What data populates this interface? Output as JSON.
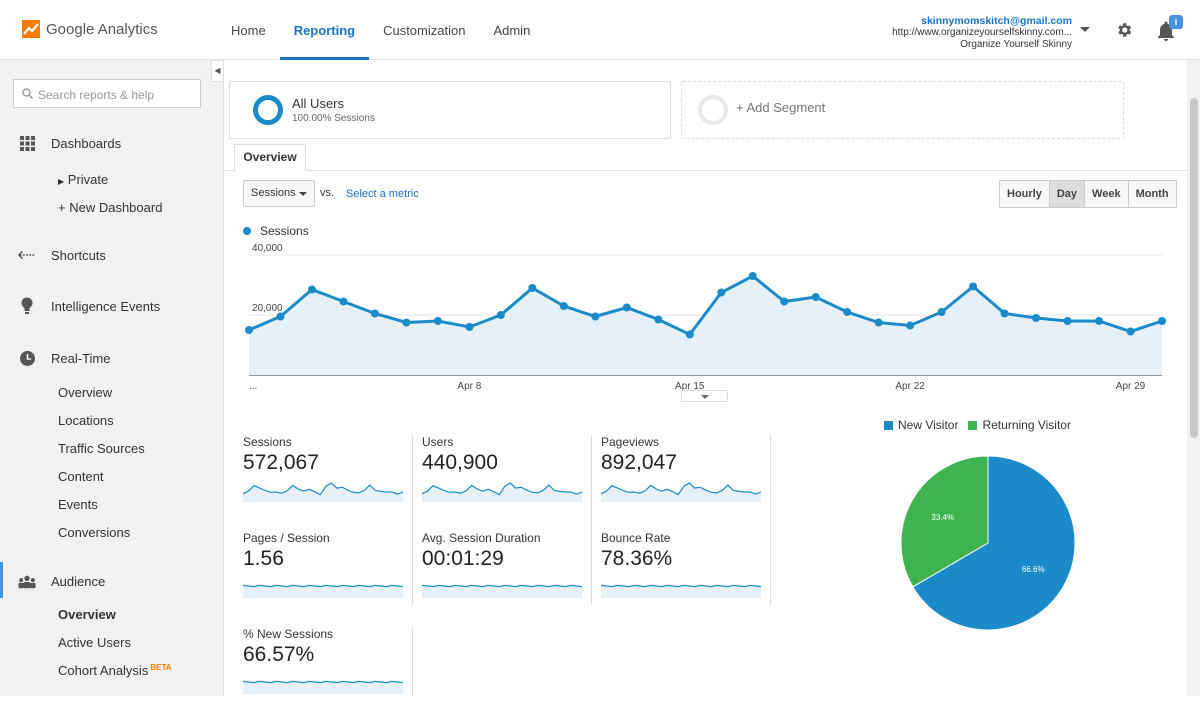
{
  "app": {
    "name": "Google Analytics"
  },
  "nav": {
    "items": [
      "Home",
      "Reporting",
      "Customization",
      "Admin"
    ],
    "active": "Reporting"
  },
  "account": {
    "email": "skinnymomskitch@gmail.com",
    "url": "http://www.organizeyourselfskinny.com...",
    "view": "Organize Yourself Skinny"
  },
  "notifications": {
    "badge": "i"
  },
  "sidebar": {
    "search_placeholder": "Search reports & help",
    "dashboards": "Dashboards",
    "private": "Private",
    "new_dashboard": "+ New Dashboard",
    "shortcuts": "Shortcuts",
    "intelligence": "Intelligence Events",
    "realtime": "Real-Time",
    "realtime_items": [
      "Overview",
      "Locations",
      "Traffic Sources",
      "Content",
      "Events",
      "Conversions"
    ],
    "audience": "Audience",
    "audience_items": [
      "Overview",
      "Active Users",
      "Cohort Analysis"
    ],
    "beta": "BETA"
  },
  "segments": {
    "all_users": "All Users",
    "all_users_pct": "100.00% Sessions",
    "add": "+ Add Segment"
  },
  "tab": "Overview",
  "controls": {
    "metric": "Sessions",
    "vs": "vs.",
    "select_metric": "Select a metric",
    "periods": [
      "Hourly",
      "Day",
      "Week",
      "Month"
    ],
    "active_period": "Day"
  },
  "chart_data": [
    {
      "type": "area",
      "series": [
        {
          "name": "Sessions",
          "values": [
            15000,
            19500,
            28500,
            24500,
            20500,
            17500,
            18000,
            16000,
            20000,
            29000,
            23000,
            19500,
            22500,
            18500,
            13500,
            27500,
            33000,
            24500,
            26000,
            21000,
            17500,
            16500,
            21000,
            29500,
            20500,
            19000,
            18000,
            18000,
            14500,
            18000
          ]
        }
      ],
      "x_tick_labels": [
        "...",
        "Apr 8",
        "Apr 15",
        "Apr 22",
        "Apr 29"
      ],
      "y_tick_labels": [
        "40,000",
        "20,000"
      ],
      "ylim": [
        0,
        40000
      ],
      "grid": true,
      "color": "#1a8bc8"
    },
    {
      "type": "pie",
      "categories": [
        "New Visitor",
        "Returning Visitor"
      ],
      "values": [
        66.6,
        33.4
      ],
      "labels": [
        "66.6%",
        "33.4%"
      ],
      "colors": [
        "#1a8bc8",
        "#3fb34f"
      ],
      "legend": "top"
    }
  ],
  "scorecards": [
    {
      "label": "Sessions",
      "value": "572,067"
    },
    {
      "label": "Users",
      "value": "440,900"
    },
    {
      "label": "Pageviews",
      "value": "892,047"
    },
    {
      "label": "Pages / Session",
      "value": "1.56"
    },
    {
      "label": "Avg. Session Duration",
      "value": "00:01:29"
    },
    {
      "label": "Bounce Rate",
      "value": "78.36%"
    },
    {
      "label": "% New Sessions",
      "value": "66.57%"
    }
  ]
}
